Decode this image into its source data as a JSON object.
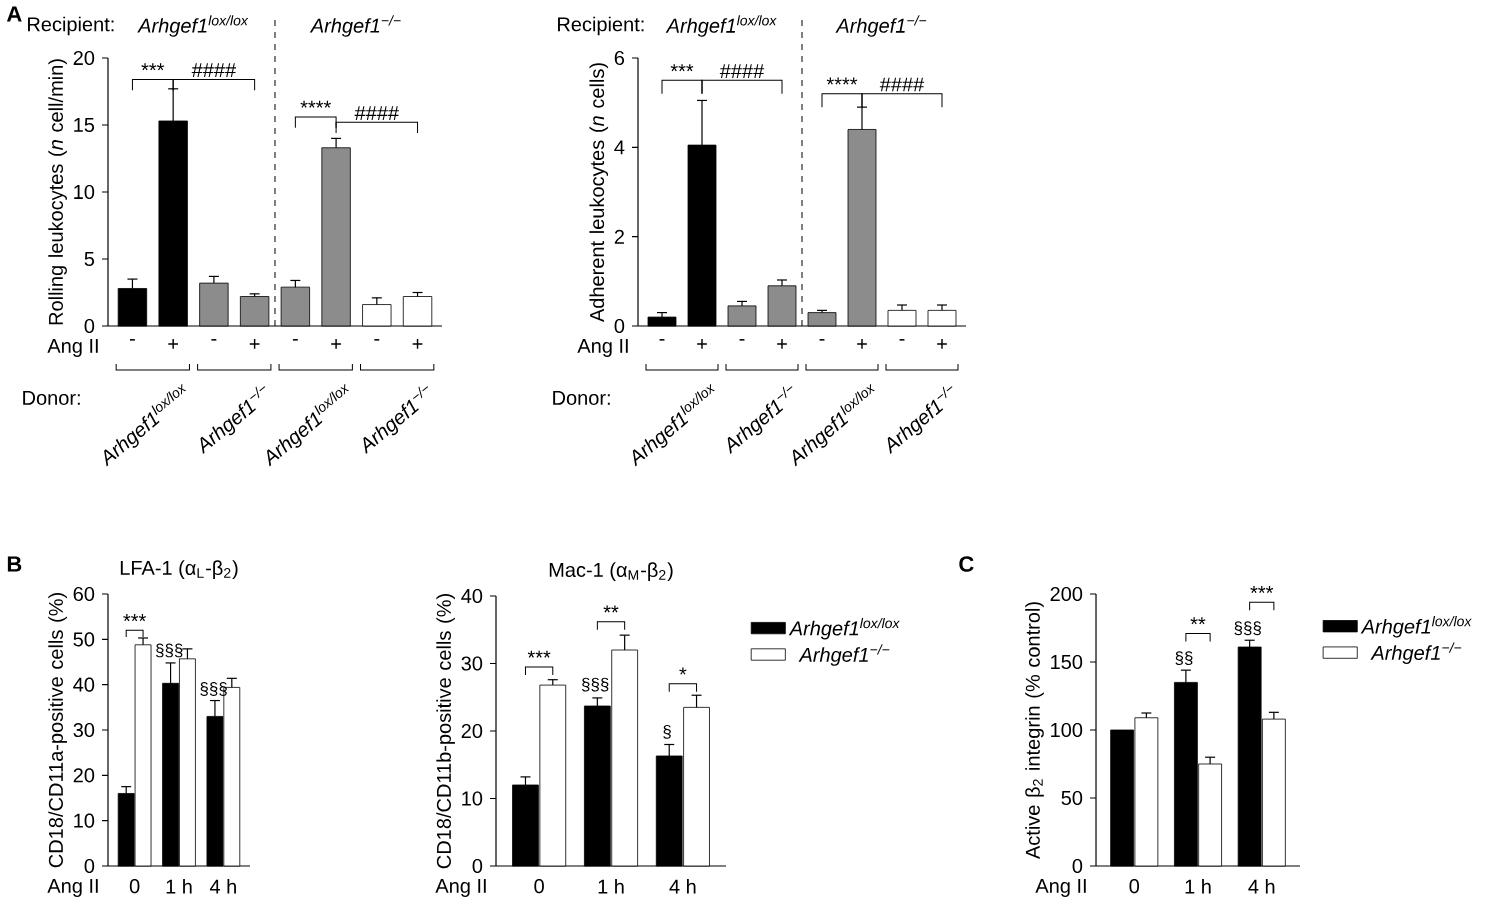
{
  "chart_data": [
    {
      "type": "bar",
      "ylabel": "Rolling leukocytes (*n* cell/min)",
      "categories": [
        "-",
        "+",
        "-",
        "+",
        "-",
        "+",
        "-",
        "+"
      ],
      "values": [
        2.8,
        15.3,
        3.2,
        2.2,
        2.9,
        13.3,
        1.6,
        2.2
      ],
      "errors": [
        [
          2.8,
          3.5
        ],
        [
          15.3,
          17.7
        ],
        [
          3.2,
          3.7
        ],
        [
          2.2,
          2.4
        ],
        [
          2.9,
          3.4
        ],
        [
          13.3,
          14
        ],
        [
          1.6,
          2.1
        ],
        [
          2.2,
          2.5
        ]
      ],
      "colors": [
        "#000000",
        "#000000",
        "#8c8c8c",
        "#8c8c8c",
        "#8c8c8c",
        "#8c8c8c",
        "#ffffff",
        "#ffffff"
      ],
      "ylim": [
        0,
        20
      ],
      "yticks": [
        0,
        5,
        10,
        15,
        20
      ],
      "annotations": [
        "A",
        "Recipient:",
        "Arhgef1$^{lox/lox}$",
        "Arhgef1$^{−/−}$",
        "Ang II",
        "Donor:",
        "Arhgef1$^{lox/lox}$",
        "Arhgef1$^{−/−}$",
        "Arhgef1$^{lox/lox}$",
        "Arhgef1$^{−/−}$",
        "***",
        "####",
        "****",
        "####"
      ]
    },
    {
      "type": "bar",
      "ylabel": "Adherent leukocytes (*n* cells)",
      "categories": [
        "-",
        "+",
        "-",
        "+",
        "-",
        "+",
        "-",
        "+"
      ],
      "values": [
        0.2,
        4.05,
        0.45,
        0.9,
        0.3,
        4.4,
        0.35,
        0.35
      ],
      "errors": [
        [
          0.2,
          0.3
        ],
        [
          4.05,
          5.05
        ],
        [
          0.45,
          0.55
        ],
        [
          0.9,
          1.03
        ],
        [
          0.3,
          0.35
        ],
        [
          4.4,
          4.9
        ],
        [
          0.35,
          0.47
        ],
        [
          0.35,
          0.47
        ]
      ],
      "colors": [
        "#000000",
        "#000000",
        "#8c8c8c",
        "#8c8c8c",
        "#8c8c8c",
        "#8c8c8c",
        "#ffffff",
        "#ffffff"
      ],
      "ylim": [
        0,
        6
      ],
      "yticks": [
        0,
        2,
        4,
        6
      ],
      "annotations": [
        "Recipient:",
        "Arhgef1$^{lox/lox}$",
        "Arhgef1$^{−/−}$",
        "Ang II",
        "Donor:",
        "Arhgef1$^{lox/lox}$",
        "Arhgef1$^{−/−}$",
        "Arhgef1$^{lox/lox}$",
        "Arhgef1$^{−/−}$",
        "***",
        "####",
        "****",
        "####"
      ]
    },
    {
      "type": "bar",
      "title": "LFA-1 (α$_{L}$-β$_{2}$)",
      "ylabel": "CD18/CD11a-positive cells (%)",
      "categories": [
        "0",
        "1 h",
        "4 h"
      ],
      "series": [
        {
          "color": "#000000",
          "values": [
            16,
            40.3,
            33
          ],
          "errors": [
            [
              16,
              17.5
            ],
            [
              40.3,
              44.8
            ],
            [
              33,
              36.5
            ]
          ]
        },
        {
          "color": "#ffffff",
          "values": [
            48.8,
            45.7,
            39.4
          ],
          "errors": [
            [
              48.8,
              50.3
            ],
            [
              45.7,
              47.9
            ],
            [
              39.4,
              41.4
            ]
          ]
        }
      ],
      "ylim": [
        0,
        60
      ],
      "yticks": [
        0,
        10,
        20,
        30,
        40,
        50,
        60
      ],
      "annotations": [
        "B",
        "Ang II",
        "***",
        "§§§",
        "§§§"
      ]
    },
    {
      "type": "bar",
      "title": "Mac-1 (α$_{M}$-β$_{2}$)",
      "ylabel": "CD18/CD11b-positive cells (%)",
      "categories": [
        "0",
        "1 h",
        "4 h"
      ],
      "series": [
        {
          "name": "Arhgef1$^{lox/lox}$",
          "color": "#000000",
          "values": [
            12,
            23.7,
            16.3
          ],
          "errors": [
            [
              12,
              13.2
            ],
            [
              23.7,
              24.9
            ],
            [
              16.3,
              18
            ]
          ]
        },
        {
          "name": "Arhgef1$^{−/−}$",
          "color": "#ffffff",
          "values": [
            26.8,
            32,
            23.5
          ],
          "errors": [
            [
              26.8,
              27.6
            ],
            [
              32,
              34.2
            ],
            [
              23.5,
              25.3
            ]
          ]
        }
      ],
      "ylim": [
        0,
        40
      ],
      "yticks": [
        0,
        10,
        20,
        30,
        40
      ],
      "legend": "right",
      "annotations": [
        "Ang II",
        "***",
        "**",
        "*",
        "§§§",
        "§"
      ]
    },
    {
      "type": "bar",
      "ylabel": "Active β$_{2}$ integrin (% control)",
      "categories": [
        "0",
        "1 h",
        "4 h"
      ],
      "series": [
        {
          "name": "Arhgef1$^{lox/lox}$",
          "color": "#000000",
          "values": [
            100,
            135,
            161
          ],
          "errors": [
            null,
            [
              135,
              144
            ],
            [
              161,
              166
            ]
          ]
        },
        {
          "name": "Arhgef1$^{−/−}$",
          "color": "#ffffff",
          "values": [
            109,
            75,
            108
          ],
          "errors": [
            [
              109,
              112.5
            ],
            [
              75,
              80
            ],
            [
              108,
              113
            ]
          ]
        }
      ],
      "ylim": [
        0,
        200
      ],
      "yticks": [
        0,
        50,
        100,
        150,
        200
      ],
      "legend": "right",
      "annotations": [
        "C",
        "Ang II",
        "**",
        "***",
        "§§",
        "§§§"
      ]
    }
  ]
}
